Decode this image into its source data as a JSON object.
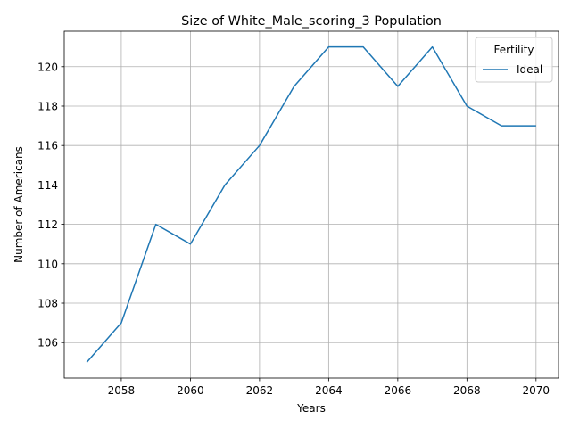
{
  "chart_data": {
    "type": "line",
    "title": "Size of White_Male_scoring_3 Population",
    "xlabel": "Years",
    "ylabel": "Number of Americans",
    "x": [
      2057,
      2058,
      2059,
      2060,
      2061,
      2062,
      2063,
      2064,
      2065,
      2066,
      2067,
      2068,
      2069,
      2070
    ],
    "series": [
      {
        "name": "Ideal",
        "color": "#1f77b4",
        "values": [
          105,
          107,
          112,
          111,
          114,
          116,
          119,
          121,
          121,
          119,
          121,
          118,
          117,
          117
        ]
      }
    ],
    "xlim": [
      2056.35,
      2070.65
    ],
    "ylim": [
      104.2,
      121.8
    ],
    "xticks": [
      "2058",
      "2060",
      "2062",
      "2064",
      "2066",
      "2068",
      "2070"
    ],
    "yticks": [
      "106",
      "108",
      "110",
      "112",
      "114",
      "116",
      "118",
      "120"
    ],
    "grid": true,
    "legend": {
      "title": "Fertility",
      "placement": "top-right"
    }
  }
}
